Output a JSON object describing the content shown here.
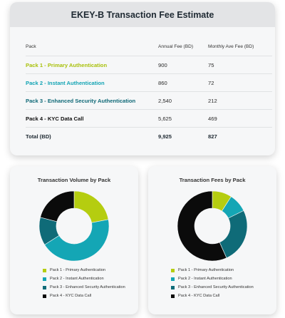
{
  "table": {
    "title": "EKEY-B Transaction Fee Estimate",
    "headers": {
      "pack": "Pack",
      "annual": "Annual Fee (BD)",
      "monthly": "Monthly Ave Fee (BD)"
    },
    "rows": [
      {
        "pack": "Pack 1 - Primary Authentication",
        "annual": "900",
        "monthly": "75",
        "color": "#a9c10c"
      },
      {
        "pack": "Pack 2 - Instant Authentication",
        "annual": "860",
        "monthly": "72",
        "color": "#13a4b4"
      },
      {
        "pack": "Pack 3 - Enhanced Security Authentication",
        "annual": "2,540",
        "monthly": "212",
        "color": "#0f6977"
      },
      {
        "pack": "Pack 4 - KYC Data Call",
        "annual": "5,625",
        "monthly": "469",
        "color": "#111111"
      }
    ],
    "total": {
      "label": "Total (BD)",
      "annual": "9,925",
      "monthly": "827"
    }
  },
  "legend": {
    "items": [
      {
        "label": "Pack 1 - Primary Authentication",
        "color": "#b5cd10"
      },
      {
        "label": "Pack 2 - Instant Authentication",
        "color": "#14a6b5"
      },
      {
        "label": "Pack 3 - Enhanced Security Authentication",
        "color": "#0f6b78"
      },
      {
        "label": "Pack 4 - KYC Data Call",
        "color": "#0b0b0b"
      }
    ]
  },
  "chart_data": [
    {
      "type": "pie",
      "title": "Transaction Volume by Pack",
      "categories": [
        "Pack 1 - Primary Authentication",
        "Pack 2 - Instant Authentication",
        "Pack 3 - Enhanced Security Authentication",
        "Pack 4 - KYC Data Call"
      ],
      "values": [
        22,
        44,
        13,
        21
      ],
      "colors": [
        "#b5cd10",
        "#14a6b5",
        "#0f6b78",
        "#0b0b0b"
      ],
      "legend": "bottom"
    },
    {
      "type": "pie",
      "title": "Transaction Fees by Pack",
      "categories": [
        "Pack 1 - Primary Authentication",
        "Pack 2 - Instant Authentication",
        "Pack 3 - Enhanced Security Authentication",
        "Pack 4 - KYC Data Call"
      ],
      "values": [
        900,
        860,
        2540,
        5625
      ],
      "colors": [
        "#b5cd10",
        "#14a6b5",
        "#0f6b78",
        "#0b0b0b"
      ],
      "legend": "bottom"
    }
  ]
}
